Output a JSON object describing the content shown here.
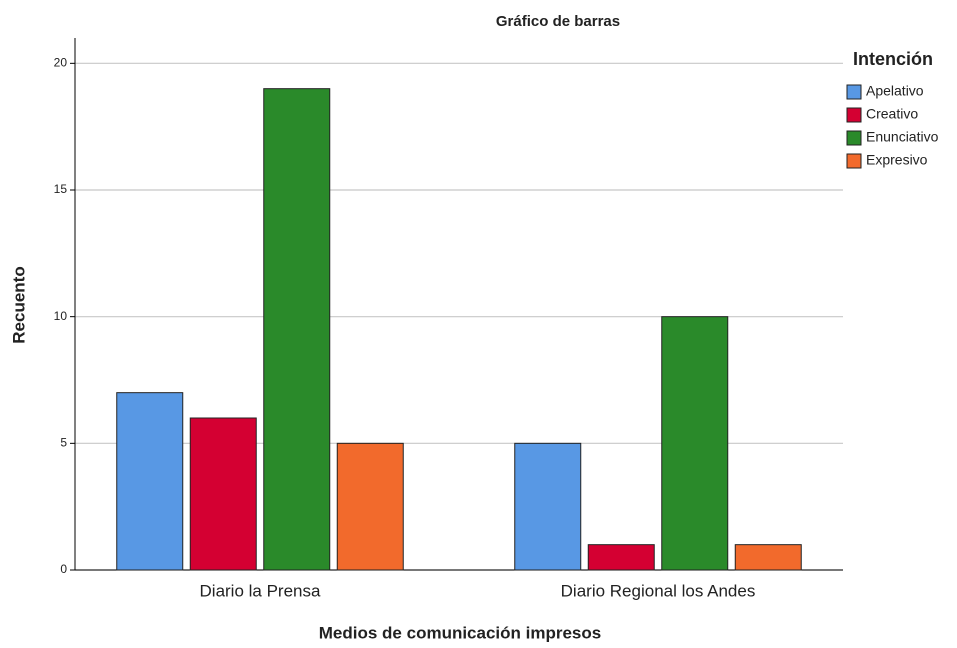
{
  "chart_data": {
    "type": "bar",
    "title": "Gráfico de barras",
    "x_label": "Medios de comunicación impresos",
    "y_label": "Recuento",
    "legend_title": "Intención",
    "categories": [
      "Diario la Prensa",
      "Diario Regional los Andes"
    ],
    "series": [
      {
        "name": "Apelativo",
        "color": "#5898e4",
        "values": [
          7,
          5
        ]
      },
      {
        "name": "Creativo",
        "color": "#d40032",
        "values": [
          6,
          1
        ]
      },
      {
        "name": "Enunciativo",
        "color": "#2a8a2a",
        "values": [
          19,
          10
        ]
      },
      {
        "name": "Expresivo",
        "color": "#f26a2c",
        "values": [
          5,
          1
        ]
      }
    ],
    "ylim": [
      0,
      21
    ],
    "yticks": [
      0,
      5,
      10,
      15,
      20
    ],
    "grid": true,
    "legend": "right"
  }
}
